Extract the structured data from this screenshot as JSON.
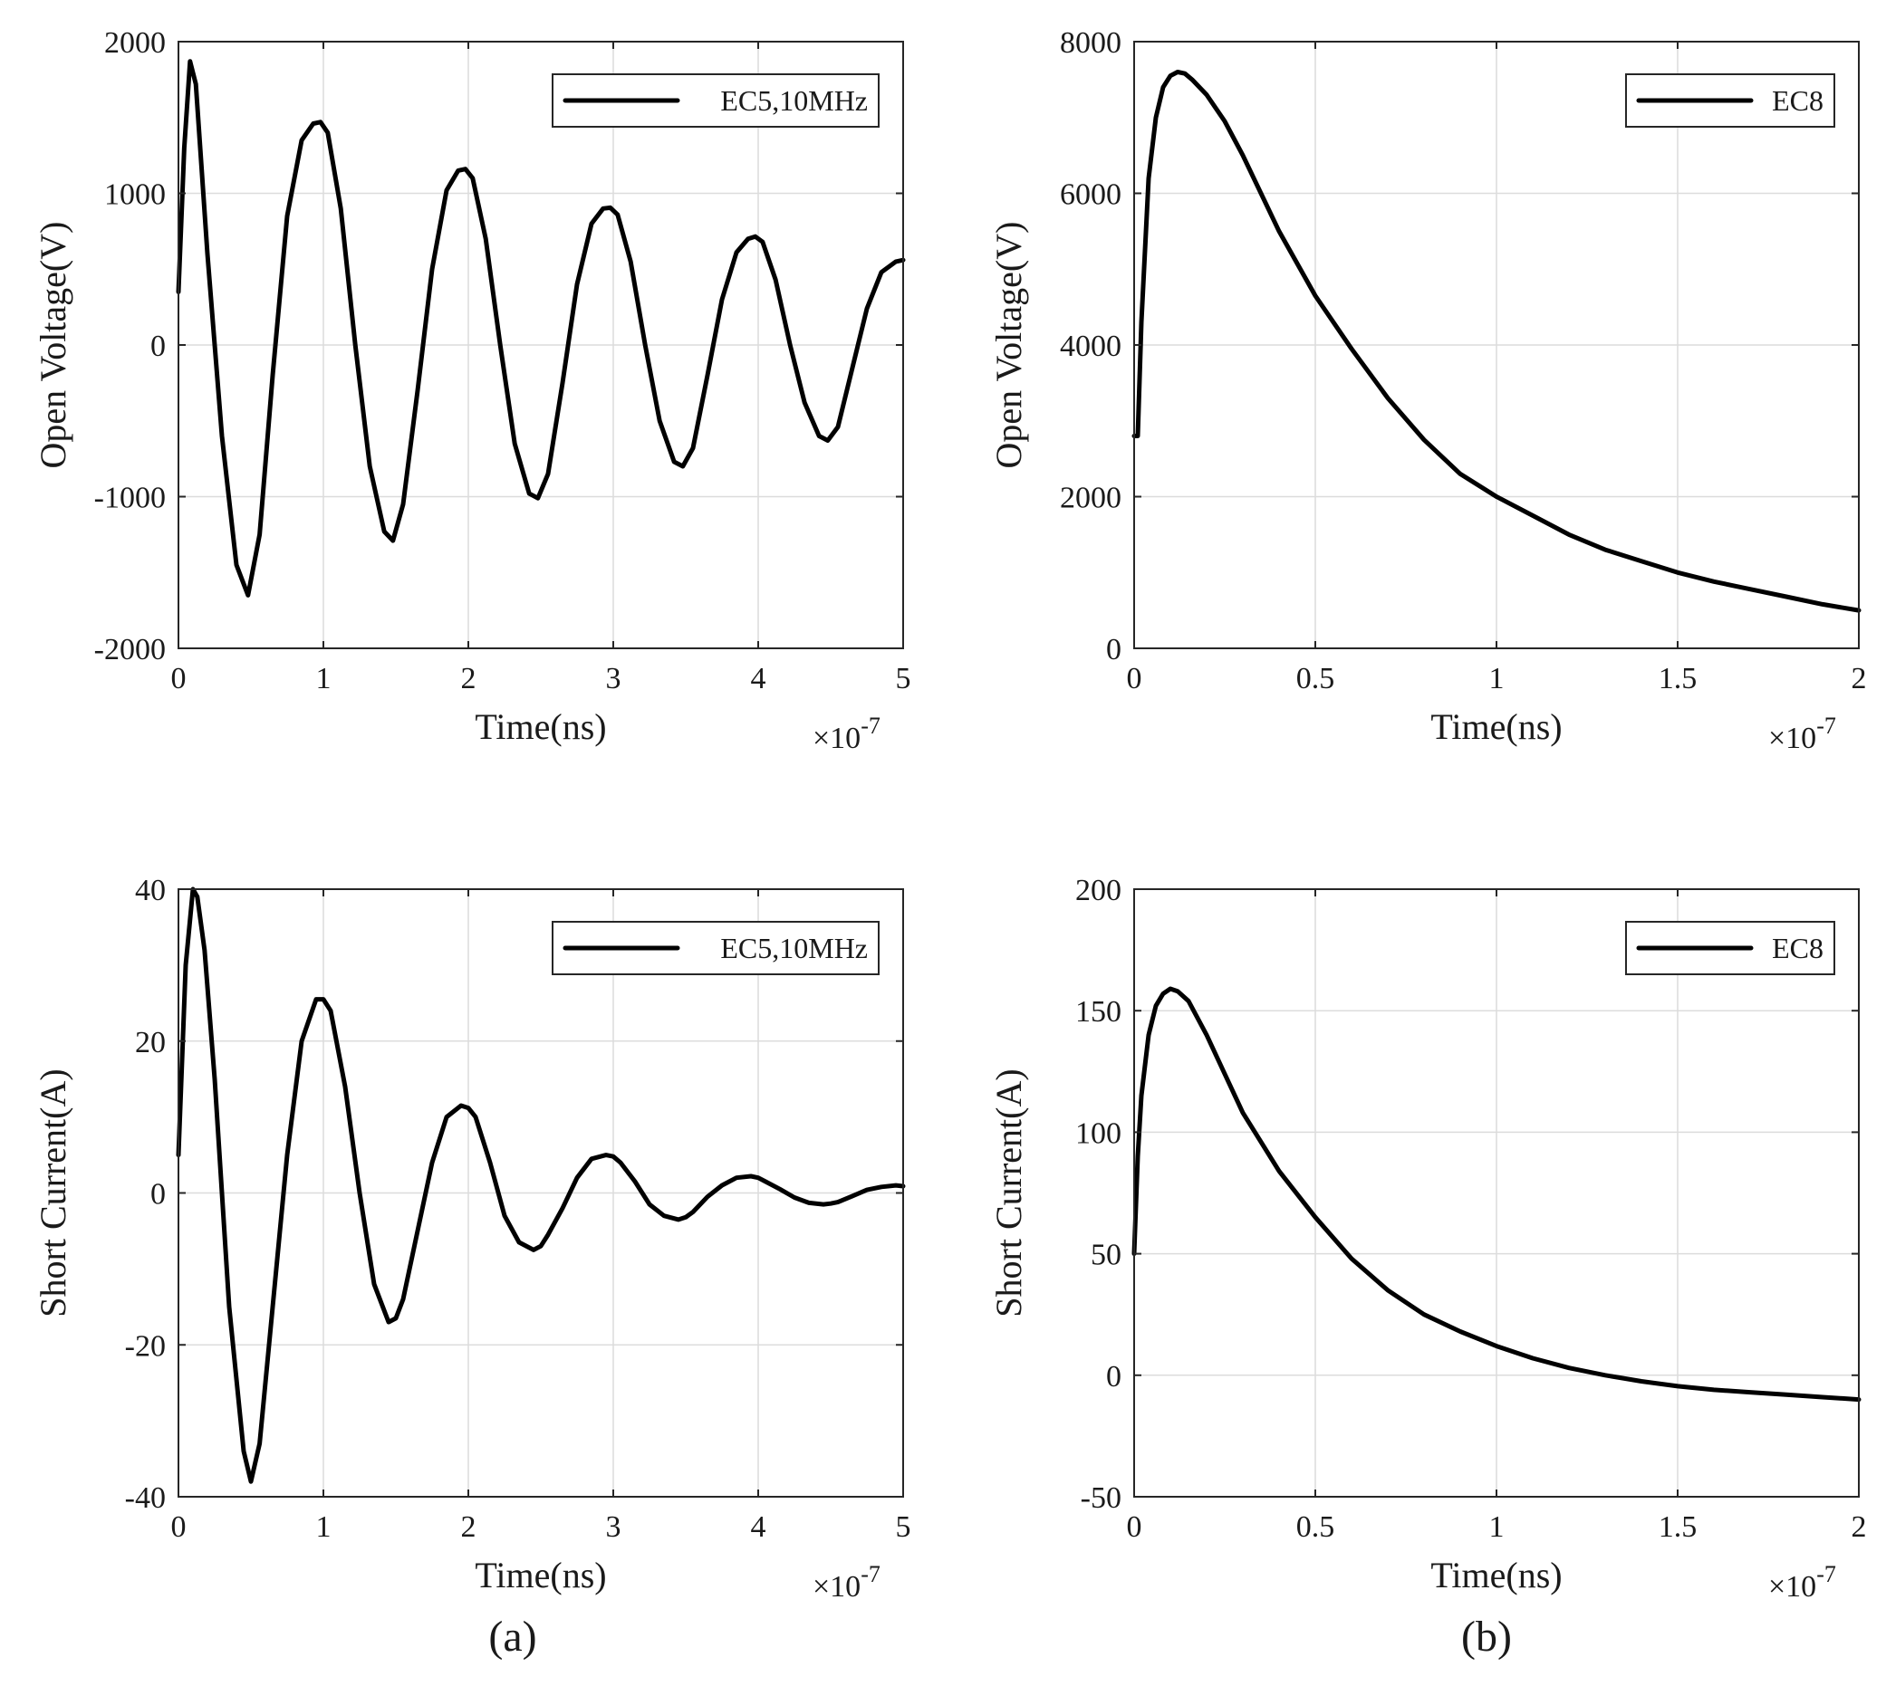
{
  "figure": {
    "captions": [
      "(a)",
      "(b)"
    ],
    "line_color": "#000000"
  },
  "chart_data": [
    {
      "id": "top-left",
      "type": "line",
      "xlabel": "Time(ns)",
      "ylabel": "Open Voltage(V)",
      "xlim": [
        0,
        5
      ],
      "ylim": [
        -2000,
        2000
      ],
      "xticks": [
        0,
        1,
        2,
        3,
        4,
        5
      ],
      "xtick_labels": [
        "0",
        "1",
        "2",
        "3",
        "4",
        "5"
      ],
      "yticks": [
        -2000,
        -1000,
        0,
        1000,
        2000
      ],
      "ytick_labels": [
        "-2000",
        "-1000",
        "0",
        "1000",
        "2000"
      ],
      "x_exponent": {
        "base": "×10",
        "power": "-7"
      },
      "grid": true,
      "legend_position": "top-right",
      "series": [
        {
          "name": "EC5,10MHz",
          "x": [
            0,
            0.04,
            0.08,
            0.12,
            0.2,
            0.3,
            0.4,
            0.48,
            0.56,
            0.65,
            0.75,
            0.85,
            0.93,
            0.98,
            1.03,
            1.12,
            1.22,
            1.32,
            1.42,
            1.48,
            1.55,
            1.65,
            1.75,
            1.85,
            1.93,
            1.98,
            2.03,
            2.12,
            2.22,
            2.32,
            2.42,
            2.48,
            2.55,
            2.65,
            2.75,
            2.85,
            2.93,
            2.98,
            3.03,
            3.12,
            3.22,
            3.32,
            3.42,
            3.48,
            3.55,
            3.65,
            3.75,
            3.85,
            3.93,
            3.98,
            4.03,
            4.12,
            4.22,
            4.32,
            4.42,
            4.48,
            4.55,
            4.65,
            4.75,
            4.85,
            4.95,
            5.0
          ],
          "values": [
            350,
            1300,
            1870,
            1720,
            600,
            -600,
            -1450,
            -1650,
            -1250,
            -200,
            850,
            1350,
            1460,
            1470,
            1400,
            900,
            0,
            -800,
            -1230,
            -1290,
            -1050,
            -300,
            500,
            1020,
            1150,
            1160,
            1100,
            700,
            0,
            -650,
            -980,
            -1010,
            -850,
            -250,
            400,
            800,
            900,
            905,
            860,
            550,
            0,
            -500,
            -770,
            -800,
            -680,
            -200,
            300,
            610,
            700,
            715,
            680,
            430,
            0,
            -380,
            -600,
            -630,
            -540,
            -150,
            240,
            480,
            550,
            560
          ]
        }
      ]
    },
    {
      "id": "top-right",
      "type": "line",
      "xlabel": "Time(ns)",
      "ylabel": "Open Voltage(V)",
      "xlim": [
        0,
        2
      ],
      "ylim": [
        0,
        8000
      ],
      "xticks": [
        0,
        0.5,
        1,
        1.5,
        2
      ],
      "xtick_labels": [
        "0",
        "0.5",
        "1",
        "1.5",
        "2"
      ],
      "yticks": [
        0,
        2000,
        4000,
        6000,
        8000
      ],
      "ytick_labels": [
        "0",
        "2000",
        "4000",
        "6000",
        "8000"
      ],
      "x_exponent": {
        "base": "×10",
        "power": "-7"
      },
      "grid": true,
      "legend_position": "top-right",
      "series": [
        {
          "name": "EC8",
          "x": [
            0,
            0.01,
            0.02,
            0.04,
            0.06,
            0.08,
            0.1,
            0.12,
            0.14,
            0.16,
            0.2,
            0.25,
            0.3,
            0.4,
            0.5,
            0.6,
            0.7,
            0.8,
            0.9,
            1.0,
            1.1,
            1.2,
            1.3,
            1.4,
            1.5,
            1.6,
            1.7,
            1.8,
            1.9,
            2.0
          ],
          "values": [
            2800,
            2800,
            4300,
            6200,
            7000,
            7400,
            7550,
            7600,
            7580,
            7500,
            7300,
            6950,
            6500,
            5500,
            4650,
            3950,
            3300,
            2750,
            2300,
            2000,
            1750,
            1500,
            1300,
            1150,
            1000,
            880,
            780,
            680,
            580,
            500
          ]
        }
      ]
    },
    {
      "id": "bottom-left",
      "type": "line",
      "xlabel": "Time(ns)",
      "ylabel": "Short Current(A)",
      "xlim": [
        0,
        5
      ],
      "ylim": [
        -40,
        40
      ],
      "xticks": [
        0,
        1,
        2,
        3,
        4,
        5
      ],
      "xtick_labels": [
        "0",
        "1",
        "2",
        "3",
        "4",
        "5"
      ],
      "yticks": [
        -40,
        -20,
        0,
        20,
        40
      ],
      "ytick_labels": [
        "-40",
        "-20",
        "0",
        "20",
        "40"
      ],
      "x_exponent": {
        "base": "×10",
        "power": "-7"
      },
      "grid": true,
      "legend_position": "top-right",
      "series": [
        {
          "name": "EC5,10MHz",
          "x": [
            0,
            0.05,
            0.1,
            0.13,
            0.18,
            0.25,
            0.35,
            0.45,
            0.5,
            0.56,
            0.65,
            0.75,
            0.85,
            0.95,
            1.0,
            1.05,
            1.15,
            1.25,
            1.35,
            1.45,
            1.5,
            1.55,
            1.65,
            1.75,
            1.85,
            1.95,
            2.0,
            2.05,
            2.15,
            2.25,
            2.35,
            2.45,
            2.5,
            2.55,
            2.65,
            2.75,
            2.85,
            2.95,
            3.0,
            3.05,
            3.15,
            3.25,
            3.35,
            3.45,
            3.5,
            3.55,
            3.65,
            3.75,
            3.85,
            3.95,
            4.0,
            4.05,
            4.15,
            4.25,
            4.35,
            4.45,
            4.5,
            4.55,
            4.65,
            4.75,
            4.85,
            4.95,
            5.0
          ],
          "values": [
            5,
            30,
            40,
            39,
            32,
            15,
            -15,
            -34,
            -38,
            -33,
            -15,
            5,
            20,
            25.5,
            25.5,
            24,
            14,
            0,
            -12,
            -17,
            -16.5,
            -14,
            -5,
            4,
            10,
            11.5,
            11.2,
            10,
            4,
            -3,
            -6.5,
            -7.5,
            -7,
            -5.5,
            -2,
            2,
            4.5,
            5,
            4.8,
            4,
            1.5,
            -1.5,
            -3,
            -3.5,
            -3.2,
            -2.5,
            -0.5,
            1,
            2,
            2.2,
            2,
            1.5,
            0.5,
            -0.6,
            -1.3,
            -1.5,
            -1.4,
            -1.2,
            -0.4,
            0.4,
            0.8,
            1,
            0.9
          ]
        }
      ]
    },
    {
      "id": "bottom-right",
      "type": "line",
      "xlabel": "Time(ns)",
      "ylabel": "Short Current(A)",
      "xlim": [
        0,
        2
      ],
      "ylim": [
        -50,
        200
      ],
      "xticks": [
        0,
        0.5,
        1,
        1.5,
        2
      ],
      "xtick_labels": [
        "0",
        "0.5",
        "1",
        "1.5",
        "2"
      ],
      "yticks": [
        -50,
        0,
        50,
        100,
        150,
        200
      ],
      "ytick_labels": [
        "-50",
        "0",
        "50",
        "100",
        "150",
        "200"
      ],
      "x_exponent": {
        "base": "×10",
        "power": "-7"
      },
      "grid": true,
      "legend_position": "top-right",
      "series": [
        {
          "name": "EC8",
          "x": [
            0,
            0.01,
            0.02,
            0.04,
            0.06,
            0.08,
            0.1,
            0.12,
            0.15,
            0.2,
            0.25,
            0.3,
            0.4,
            0.5,
            0.6,
            0.7,
            0.8,
            0.9,
            1.0,
            1.1,
            1.2,
            1.3,
            1.4,
            1.5,
            1.6,
            1.7,
            1.8,
            1.9,
            2.0
          ],
          "values": [
            50,
            90,
            115,
            140,
            152,
            157,
            159,
            158,
            154,
            140,
            124,
            108,
            84,
            65,
            48,
            35,
            25,
            18,
            12,
            7,
            3,
            0,
            -2.5,
            -4.5,
            -6,
            -7,
            -8,
            -9,
            -10
          ]
        }
      ]
    }
  ]
}
